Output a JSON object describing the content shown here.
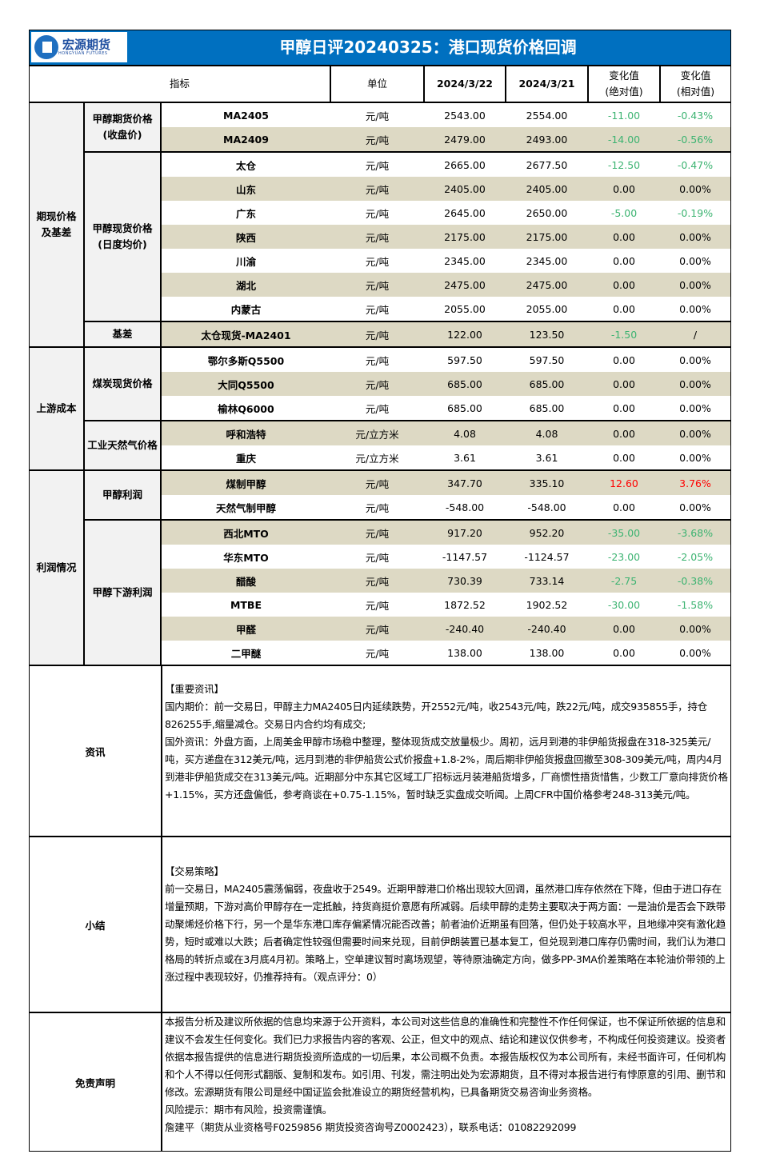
{
  "header": {
    "logo_text": "宏源期货",
    "logo_sub": "HONGYUAN FUTURES",
    "title": "甲醇日评20240325：港口现货价格回调"
  },
  "columns": {
    "indicator": "指标",
    "unit": "单位",
    "date1": "2024/3/22",
    "date2": "2024/3/21",
    "abs_change": "变化值\n(绝对值)",
    "rel_change": "变化值\n(相对值)"
  },
  "colors": {
    "brand": "#0070c0",
    "shade": "#ddd9c4",
    "label_bg": "#f2f2f2",
    "down": "#3cb371",
    "up": "#ff0000"
  },
  "groups": [
    {
      "label": "期现价格\n及基差",
      "subgroups": [
        {
          "label": "甲醇期货价格\n(收盘价)",
          "rows": [
            {
              "name": "MA2405",
              "unit": "元/吨",
              "d1": "2543.00",
              "d2": "2554.00",
              "abs": "-11.00",
              "rel": "-0.43%",
              "trend": "down"
            },
            {
              "name": "MA2409",
              "unit": "元/吨",
              "d1": "2479.00",
              "d2": "2493.00",
              "abs": "-14.00",
              "rel": "-0.56%",
              "trend": "down"
            }
          ]
        },
        {
          "label": "甲醇现货价格\n(日度均价)",
          "rows": [
            {
              "name": "太仓",
              "unit": "元/吨",
              "d1": "2665.00",
              "d2": "2677.50",
              "abs": "-12.50",
              "rel": "-0.47%",
              "trend": "down"
            },
            {
              "name": "山东",
              "unit": "元/吨",
              "d1": "2405.00",
              "d2": "2405.00",
              "abs": "0.00",
              "rel": "0.00%",
              "trend": "flat"
            },
            {
              "name": "广东",
              "unit": "元/吨",
              "d1": "2645.00",
              "d2": "2650.00",
              "abs": "-5.00",
              "rel": "-0.19%",
              "trend": "down"
            },
            {
              "name": "陕西",
              "unit": "元/吨",
              "d1": "2175.00",
              "d2": "2175.00",
              "abs": "0.00",
              "rel": "0.00%",
              "trend": "flat"
            },
            {
              "name": "川渝",
              "unit": "元/吨",
              "d1": "2345.00",
              "d2": "2345.00",
              "abs": "0.00",
              "rel": "0.00%",
              "trend": "flat"
            },
            {
              "name": "湖北",
              "unit": "元/吨",
              "d1": "2475.00",
              "d2": "2475.00",
              "abs": "0.00",
              "rel": "0.00%",
              "trend": "flat"
            },
            {
              "name": "内蒙古",
              "unit": "元/吨",
              "d1": "2055.00",
              "d2": "2055.00",
              "abs": "0.00",
              "rel": "0.00%",
              "trend": "flat"
            }
          ]
        },
        {
          "label": "基差",
          "rows": [
            {
              "name": "太仓现货-MA2401",
              "unit": "元/吨",
              "d1": "122.00",
              "d2": "123.50",
              "abs": "-1.50",
              "rel": "/",
              "trend": "down"
            }
          ]
        }
      ]
    },
    {
      "label": "上游成本",
      "subgroups": [
        {
          "label": "煤炭现货价格",
          "rows": [
            {
              "name": "鄂尔多斯Q5500",
              "unit": "元/吨",
              "d1": "597.50",
              "d2": "597.50",
              "abs": "0.00",
              "rel": "0.00%",
              "trend": "flat"
            },
            {
              "name": "大同Q5500",
              "unit": "元/吨",
              "d1": "685.00",
              "d2": "685.00",
              "abs": "0.00",
              "rel": "0.00%",
              "trend": "flat"
            },
            {
              "name": "榆林Q6000",
              "unit": "元/吨",
              "d1": "685.00",
              "d2": "685.00",
              "abs": "0.00",
              "rel": "0.00%",
              "trend": "flat"
            }
          ]
        },
        {
          "label": "工业天然气价格",
          "rows": [
            {
              "name": "呼和浩特",
              "unit": "元/立方米",
              "d1": "4.08",
              "d2": "4.08",
              "abs": "0.00",
              "rel": "0.00%",
              "trend": "flat"
            },
            {
              "name": "重庆",
              "unit": "元/立方米",
              "d1": "3.61",
              "d2": "3.61",
              "abs": "0.00",
              "rel": "0.00%",
              "trend": "flat"
            }
          ]
        }
      ]
    },
    {
      "label": "利润情况",
      "subgroups": [
        {
          "label": "甲醇利润",
          "rows": [
            {
              "name": "煤制甲醇",
              "unit": "元/吨",
              "d1": "347.70",
              "d2": "335.10",
              "abs": "12.60",
              "rel": "3.76%",
              "trend": "up"
            },
            {
              "name": "天然气制甲醇",
              "unit": "元/吨",
              "d1": "-548.00",
              "d2": "-548.00",
              "abs": "0.00",
              "rel": "0.00%",
              "trend": "flat"
            }
          ]
        },
        {
          "label": "甲醇下游利润",
          "rows": [
            {
              "name": "西北MTO",
              "unit": "元/吨",
              "d1": "917.20",
              "d2": "952.20",
              "abs": "-35.00",
              "rel": "-3.68%",
              "trend": "down"
            },
            {
              "name": "华东MTO",
              "unit": "元/吨",
              "d1": "-1147.57",
              "d2": "-1124.57",
              "abs": "-23.00",
              "rel": "-2.05%",
              "trend": "down"
            },
            {
              "name": "醋酸",
              "unit": "元/吨",
              "d1": "730.39",
              "d2": "733.14",
              "abs": "-2.75",
              "rel": "-0.38%",
              "trend": "down"
            },
            {
              "name": "MTBE",
              "unit": "元/吨",
              "d1": "1872.52",
              "d2": "1902.52",
              "abs": "-30.00",
              "rel": "-1.58%",
              "trend": "down"
            },
            {
              "name": "甲醛",
              "unit": "元/吨",
              "d1": "-240.40",
              "d2": "-240.40",
              "abs": "0.00",
              "rel": "0.00%",
              "trend": "flat"
            },
            {
              "name": "二甲醚",
              "unit": "元/吨",
              "d1": "138.00",
              "d2": "138.00",
              "abs": "0.00",
              "rel": "0.00%",
              "trend": "flat"
            }
          ]
        }
      ]
    }
  ],
  "info": {
    "label": "资讯",
    "heading": "【重要资讯】",
    "domestic": "国内期价：前一交易日，甲醇主力MA2405日内延续跌势，开2552元/吨，收2543元/吨，跌22元/吨，成交935855手，持仓826255手,缩量减仓。交易日内合约均有成交;",
    "foreign": "国外资讯：外盘方面，上周美金甲醇市场稳中整理，整体现货成交放量极少。周初，远月到港的非伊船货报盘在318-325美元/吨，买方递盘在312美元/吨，远月到港的非伊船货公式价报盘+1.8-2%，周后期非伊船货报盘回撤至308-309美元/吨，周内4月到港非伊船货成交在313美元/吨。近期部分中东其它区域工厂招标远月装港船货增多，厂商惯性捂货惜售，少数工厂意向排货价格+1.15%，买方还盘偏低，参考商谈在+0.75-1.15%，暂时缺乏实盘成交听闻。上周CFR中国价格参考248-313美元/吨。"
  },
  "summary": {
    "label": "小结",
    "heading": "【交易策略】",
    "text": "前一交易日，MA2405震荡偏弱，夜盘收于2549。近期甲醇港口价格出现较大回调，虽然港口库存依然在下降，但由于进口存在增量预期，下游对高价甲醇存在一定抵触，持货商挺价意愿有所减弱。后续甲醇的走势主要取决于两方面：一是油价是否会下跌带动聚烯烃价格下行，另一个是华东港口库存偏紧情况能否改善；前者油价近期虽有回落，但仍处于较高水平，且地缘冲突有激化趋势，短时或难以大跌；后者确定性较强但需要时间来兑现，目前伊朗装置已基本复工，但兑现到港口库存仍需时间，我们认为港口格局的转折点或在3月底4月初。策略上，空单建议暂时离场观望，等待原油确定方向，做多PP-3MA价差策略在本轮油价带领的上涨过程中表现较好，仍推荐持有。（观点评分：0）"
  },
  "disclaimer": {
    "label": "免责声明",
    "text": "本报告分析及建议所依据的信息均来源于公开资料，本公司对这些信息的准确性和完整性不作任何保证，也不保证所依据的信息和建议不会发生任何变化。我们已力求报告内容的客观、公正，但文中的观点、结论和建议仅供参考，不构成任何投资建议。投资者依据本报告提供的信息进行期货投资所造成的一切后果，本公司概不负责。本报告版权仅为本公司所有，未经书面许可，任何机构和个人不得以任何形式翻版、复制和发布。如引用、刊发，需注明出处为宏源期货，且不得对本报告进行有悖原意的引用、删节和修改。宏源期货有限公司是经中国证监会批准设立的期货经营机构，已具备期货交易咨询业务资格。",
    "risk": "风险提示：期市有风险，投资需谨慎。",
    "analyst": "詹建平（期货从业资格号F0259856  期货投资咨询号Z0002423），联系电话：01082292099"
  }
}
